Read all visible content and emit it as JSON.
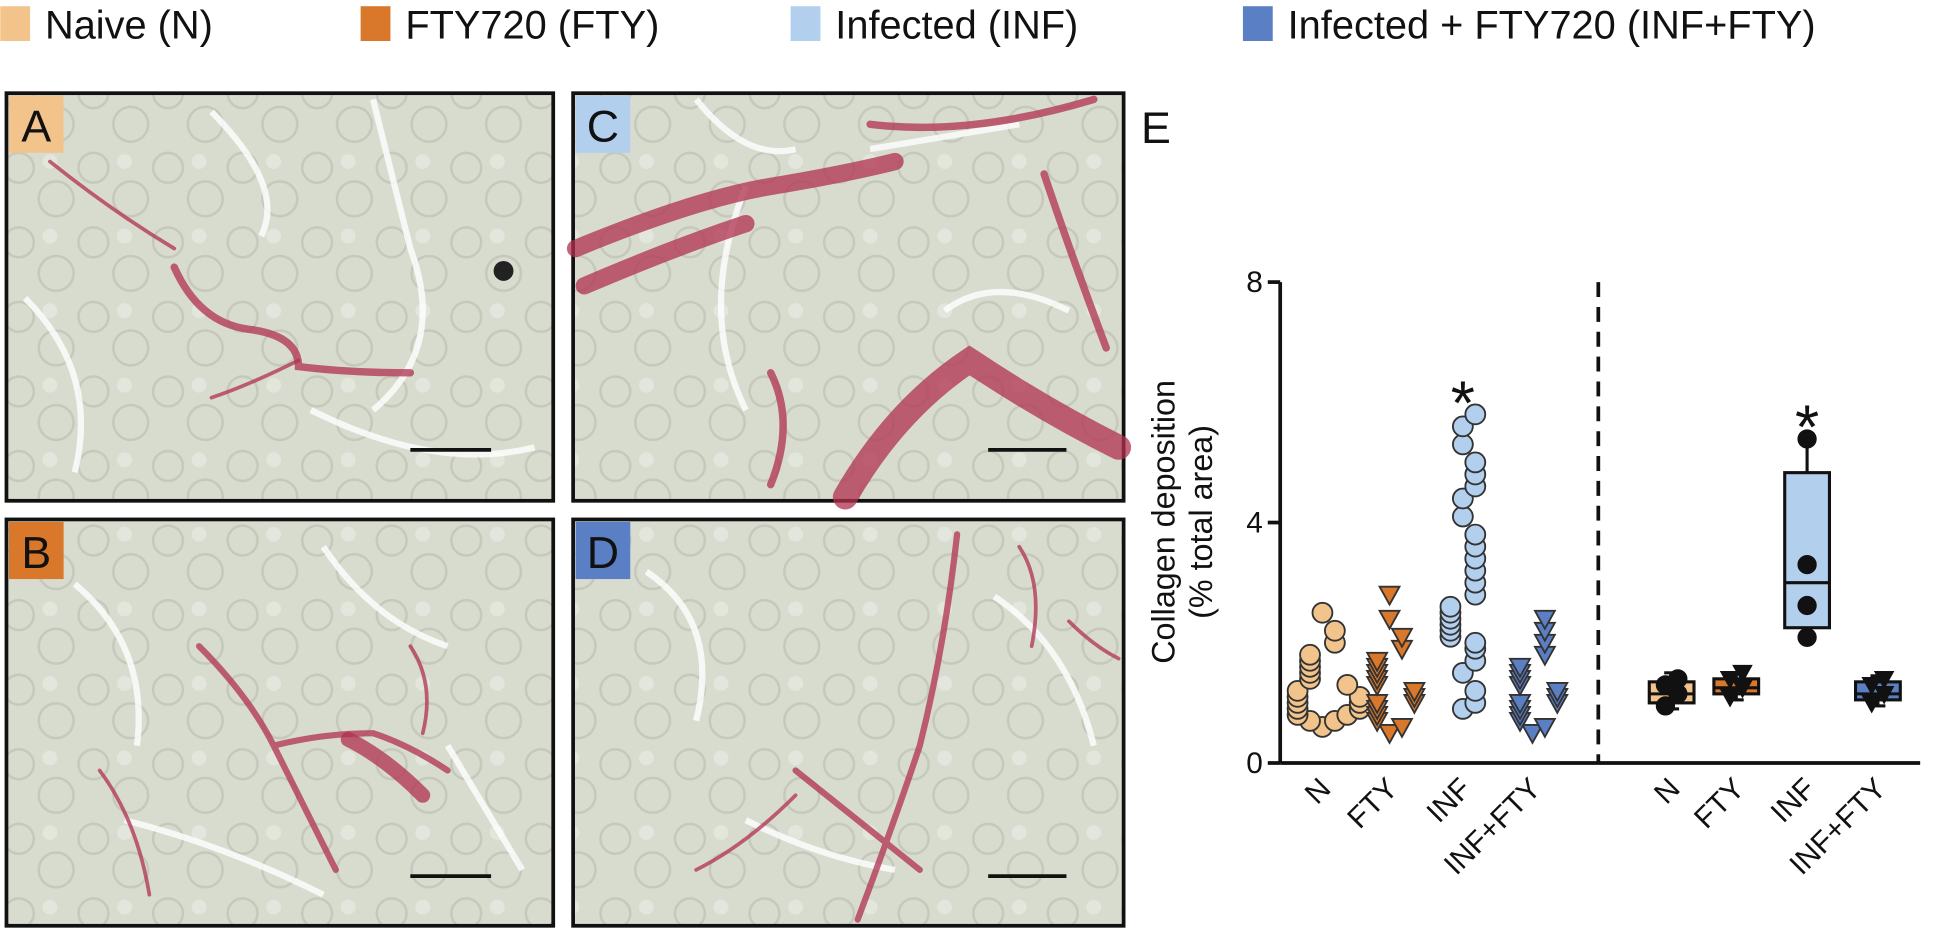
{
  "panels": [
    "A",
    "B",
    "C",
    "D"
  ],
  "chart_data": {
    "type": "scatter",
    "panel_label": "E",
    "y_label": [
      "Collagen deposition",
      "(% total area)"
    ],
    "ylim": [
      0,
      8
    ],
    "yticks": [
      0,
      4,
      8
    ],
    "categories": [
      "N",
      "FTY",
      "INF",
      "INF+FTY",
      "N",
      "FTY",
      "INF",
      "INF+FTY"
    ],
    "series": [
      {
        "name": "Naive (N)",
        "color": "#f2c48c",
        "marker": "circle",
        "values": [
          0.6,
          0.7,
          0.7,
          0.8,
          0.8,
          0.9,
          0.9,
          1.0,
          1.0,
          1.1,
          1.1,
          1.2,
          1.3,
          1.4,
          1.5,
          1.6,
          1.7,
          1.8,
          2.0,
          2.2,
          2.5
        ]
      },
      {
        "name": "FTY720 (FTY)",
        "color": "#d9782a",
        "marker": "triangle",
        "values": [
          0.5,
          0.6,
          0.7,
          0.8,
          0.9,
          1.0,
          1.0,
          1.1,
          1.2,
          1.3,
          1.4,
          1.5,
          1.6,
          1.7,
          1.9,
          2.1,
          2.4,
          2.8
        ]
      },
      {
        "name": "Infected (INF)",
        "color": "#b3cfee",
        "marker": "circle",
        "values": [
          0.9,
          1.0,
          1.2,
          1.5,
          1.7,
          1.9,
          2.0,
          2.1,
          2.2,
          2.3,
          2.4,
          2.5,
          2.6,
          2.8,
          3.0,
          3.2,
          3.4,
          3.6,
          3.8,
          4.1,
          4.4,
          4.6,
          4.8,
          5.0,
          5.3,
          5.6,
          5.8
        ]
      },
      {
        "name": "Infected + FTY720 (INF+FTY)",
        "color": "#5b7fc4",
        "marker": "triangle",
        "values": [
          0.5,
          0.6,
          0.7,
          0.8,
          0.9,
          1.0,
          1.0,
          1.1,
          1.2,
          1.3,
          1.4,
          1.5,
          1.6,
          1.8,
          2.0,
          2.2,
          2.4
        ]
      }
    ],
    "boxes": [
      {
        "min": 0.9,
        "q1": 1.0,
        "median": 1.15,
        "q3": 1.35,
        "max": 1.5,
        "points": [
          0.95,
          1.15,
          1.3,
          1.4
        ]
      },
      {
        "min": 1.05,
        "q1": 1.15,
        "median": 1.25,
        "q3": 1.4,
        "max": 1.5,
        "points": [
          1.1,
          1.25,
          1.4,
          1.5
        ]
      },
      {
        "min": 2.09,
        "q1": 2.25,
        "median": 3.0,
        "q3": 4.83,
        "max": 5.4,
        "points": [
          5.39,
          3.3,
          2.62,
          2.09
        ]
      },
      {
        "min": 0.95,
        "q1": 1.05,
        "median": 1.15,
        "q3": 1.35,
        "max": 1.45,
        "points": [
          1.0,
          1.15,
          1.3,
          1.4
        ]
      }
    ],
    "annotations": [
      "*",
      "*"
    ]
  }
}
